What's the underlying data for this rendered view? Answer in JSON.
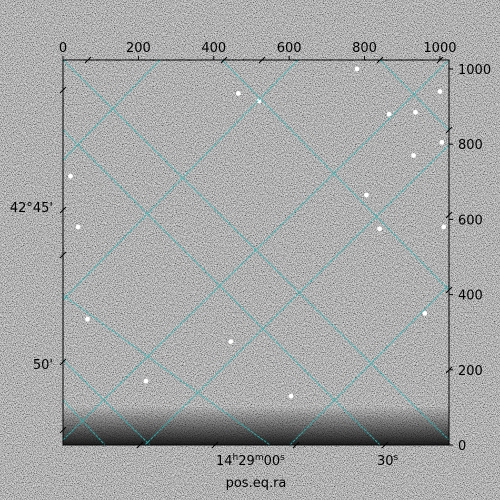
{
  "chart_data": {
    "type": "heatmap",
    "title": "",
    "xlabel": "pos.eq.ra",
    "pixel_x_ticks": [
      0,
      200,
      400,
      600,
      800,
      1000
    ],
    "pixel_y_ticks": [
      0,
      200,
      400,
      600,
      800,
      1000
    ],
    "pixel_xlim": [
      0,
      1024
    ],
    "pixel_ylim": [
      0,
      1024
    ],
    "ra_tick_labels": [
      {
        "h": "14",
        "m": "29",
        "s": "00",
        "label": "14h29m00s"
      },
      {
        "s": "30",
        "label": "30s"
      }
    ],
    "dec_tick_labels": [
      "42°45'",
      "50'"
    ],
    "grid": true,
    "grid_color": "#2ab5b5",
    "image_colormap": "gray",
    "bright_sources": [
      {
        "x": 520,
        "y": 915
      },
      {
        "x": 465,
        "y": 935
      },
      {
        "x": 780,
        "y": 1000
      },
      {
        "x": 935,
        "y": 885
      },
      {
        "x": 1005,
        "y": 805
      },
      {
        "x": 930,
        "y": 770
      },
      {
        "x": 1000,
        "y": 940
      },
      {
        "x": 960,
        "y": 350
      },
      {
        "x": 65,
        "y": 335
      },
      {
        "x": 445,
        "y": 275
      },
      {
        "x": 40,
        "y": 580
      },
      {
        "x": 805,
        "y": 665
      },
      {
        "x": 840,
        "y": 575
      },
      {
        "x": 605,
        "y": 130
      },
      {
        "x": 20,
        "y": 715
      },
      {
        "x": 220,
        "y": 170
      },
      {
        "x": 865,
        "y": 880
      },
      {
        "x": 1010,
        "y": 580
      }
    ]
  }
}
